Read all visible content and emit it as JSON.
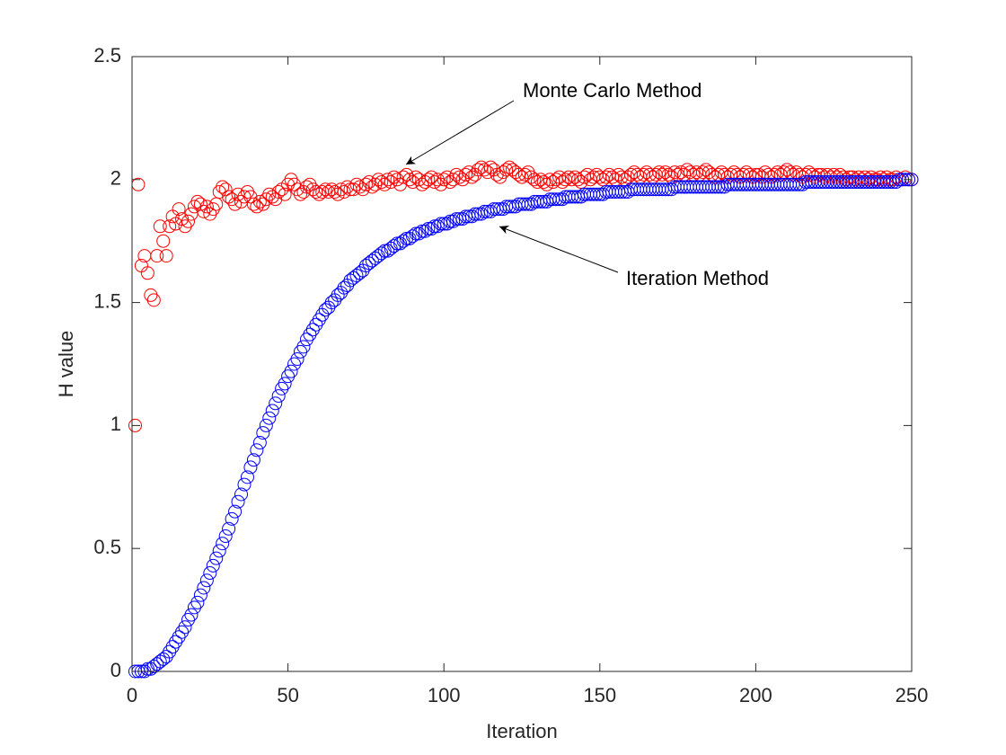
{
  "chart_data": {
    "type": "scatter",
    "xlabel": "Iteration",
    "ylabel": "H value",
    "xlim": [
      0,
      250
    ],
    "ylim": [
      0,
      2.5
    ],
    "xticks": [
      0,
      50,
      100,
      150,
      200,
      250
    ],
    "yticks": [
      0,
      0.5,
      1,
      1.5,
      2,
      2.5
    ],
    "annotations": [
      {
        "text": "Monte Carlo Method"
      },
      {
        "text": "Iteration Method"
      }
    ],
    "x": [
      1,
      2,
      3,
      4,
      5,
      6,
      7,
      8,
      9,
      10,
      11,
      12,
      13,
      14,
      15,
      16,
      17,
      18,
      19,
      20,
      21,
      22,
      23,
      24,
      25,
      26,
      27,
      28,
      29,
      30,
      31,
      32,
      33,
      34,
      35,
      36,
      37,
      38,
      39,
      40,
      41,
      42,
      43,
      44,
      45,
      46,
      47,
      48,
      49,
      50,
      51,
      52,
      53,
      54,
      55,
      56,
      57,
      58,
      59,
      60,
      61,
      62,
      63,
      64,
      65,
      66,
      67,
      68,
      69,
      70,
      71,
      72,
      73,
      74,
      75,
      76,
      77,
      78,
      79,
      80,
      81,
      82,
      83,
      84,
      85,
      86,
      87,
      88,
      89,
      90,
      91,
      92,
      93,
      94,
      95,
      96,
      97,
      98,
      99,
      100,
      101,
      102,
      103,
      104,
      105,
      106,
      107,
      108,
      109,
      110,
      111,
      112,
      113,
      114,
      115,
      116,
      117,
      118,
      119,
      120,
      121,
      122,
      123,
      124,
      125,
      126,
      127,
      128,
      129,
      130,
      131,
      132,
      133,
      134,
      135,
      136,
      137,
      138,
      139,
      140,
      141,
      142,
      143,
      144,
      145,
      146,
      147,
      148,
      149,
      150,
      151,
      152,
      153,
      154,
      155,
      156,
      157,
      158,
      159,
      160,
      161,
      162,
      163,
      164,
      165,
      166,
      167,
      168,
      169,
      170,
      171,
      172,
      173,
      174,
      175,
      176,
      177,
      178,
      179,
      180,
      181,
      182,
      183,
      184,
      185,
      186,
      187,
      188,
      189,
      190,
      191,
      192,
      193,
      194,
      195,
      196,
      197,
      198,
      199,
      200,
      201,
      202,
      203,
      204,
      205,
      206,
      207,
      208,
      209,
      210,
      211,
      212,
      213,
      214,
      215,
      216,
      217,
      218,
      219,
      220,
      221,
      222,
      223,
      224,
      225,
      226,
      227,
      228,
      229,
      230,
      231,
      232,
      233,
      234,
      235,
      236,
      237,
      238,
      239,
      240,
      241,
      242,
      243,
      244,
      245,
      246,
      247,
      248,
      249,
      250
    ],
    "series": [
      {
        "color": "#ff0000",
        "values": [
          1.0,
          1.98,
          1.65,
          1.69,
          1.62,
          1.53,
          1.51,
          1.69,
          1.81,
          1.75,
          1.69,
          1.81,
          1.85,
          1.82,
          1.88,
          1.84,
          1.81,
          1.83,
          1.86,
          1.89,
          1.91,
          1.9,
          1.87,
          1.89,
          1.86,
          1.88,
          1.9,
          1.95,
          1.97,
          1.96,
          1.93,
          1.92,
          1.9,
          1.94,
          1.91,
          1.93,
          1.95,
          1.93,
          1.9,
          1.89,
          1.91,
          1.9,
          1.92,
          1.94,
          1.93,
          1.92,
          1.95,
          1.96,
          1.94,
          1.98,
          2.0,
          1.98,
          1.96,
          1.94,
          1.95,
          1.97,
          1.98,
          1.96,
          1.95,
          1.94,
          1.95,
          1.96,
          1.95,
          1.96,
          1.95,
          1.94,
          1.96,
          1.95,
          1.97,
          1.96,
          1.96,
          1.98,
          1.97,
          1.96,
          1.98,
          1.99,
          1.97,
          1.98,
          2.0,
          1.99,
          1.98,
          2.0,
          1.99,
          2.01,
          2.0,
          1.98,
          2.01,
          2.02,
          2.0,
          1.99,
          2.01,
          2.0,
          1.98,
          1.99,
          2.0,
          2.01,
          1.99,
          2.0,
          1.98,
          2.0,
          2.01,
          1.99,
          2.0,
          2.02,
          2.01,
          2.0,
          2.02,
          2.03,
          2.01,
          2.02,
          2.04,
          2.05,
          2.04,
          2.03,
          2.05,
          2.04,
          2.02,
          2.01,
          2.03,
          2.04,
          2.05,
          2.04,
          2.03,
          2.02,
          2.01,
          2.02,
          2.03,
          2.01,
          2.0,
          1.99,
          2.0,
          1.99,
          1.98,
          2.0,
          1.99,
          2.0,
          2.01,
          1.99,
          2.0,
          2.01,
          2.0,
          2.01,
          2.0,
          1.99,
          2.01,
          2.02,
          2.0,
          2.01,
          2.02,
          2.01,
          2.0,
          2.01,
          2.02,
          2.01,
          2.0,
          2.02,
          2.01,
          2.0,
          2.01,
          2.02,
          2.03,
          2.02,
          2.01,
          2.02,
          2.03,
          2.02,
          2.01,
          2.02,
          2.03,
          2.02,
          2.03,
          2.02,
          2.01,
          2.03,
          2.02,
          2.03,
          2.02,
          2.04,
          2.03,
          2.02,
          2.03,
          2.02,
          2.03,
          2.04,
          2.03,
          2.02,
          2.01,
          2.02,
          2.03,
          2.02,
          2.01,
          2.02,
          2.03,
          2.02,
          2.01,
          2.02,
          2.03,
          2.02,
          2.01,
          2.02,
          2.02,
          2.01,
          2.03,
          2.02,
          2.01,
          2.02,
          2.03,
          2.02,
          2.03,
          2.04,
          2.03,
          2.02,
          2.03,
          2.02,
          2.01,
          2.02,
          2.03,
          2.02,
          2.01,
          2.02,
          2.02,
          2.01,
          2.02,
          2.01,
          2.02,
          2.01,
          2.02,
          2.01,
          2.0,
          2.01,
          2.01,
          2.0,
          2.01,
          2.0,
          2.01,
          2.0,
          2.01,
          2.0,
          2.0,
          2.01,
          2.0,
          2.01,
          2.0,
          2.0,
          2.01,
          2.0,
          2.0,
          2.01,
          2.0,
          2.0
        ]
      },
      {
        "color": "#0000ff",
        "values": [
          0,
          0,
          0,
          0,
          0.01,
          0.01,
          0.02,
          0.03,
          0.04,
          0.05,
          0.06,
          0.08,
          0.1,
          0.12,
          0.14,
          0.16,
          0.18,
          0.21,
          0.23,
          0.26,
          0.28,
          0.31,
          0.34,
          0.37,
          0.4,
          0.43,
          0.46,
          0.49,
          0.52,
          0.55,
          0.58,
          0.62,
          0.65,
          0.69,
          0.72,
          0.76,
          0.79,
          0.83,
          0.86,
          0.9,
          0.93,
          0.97,
          1.0,
          1.03,
          1.06,
          1.09,
          1.12,
          1.15,
          1.17,
          1.2,
          1.22,
          1.25,
          1.27,
          1.3,
          1.32,
          1.35,
          1.37,
          1.39,
          1.41,
          1.43,
          1.45,
          1.47,
          1.48,
          1.5,
          1.51,
          1.53,
          1.54,
          1.56,
          1.57,
          1.59,
          1.6,
          1.61,
          1.62,
          1.63,
          1.65,
          1.66,
          1.67,
          1.68,
          1.69,
          1.7,
          1.71,
          1.71,
          1.72,
          1.73,
          1.74,
          1.74,
          1.75,
          1.76,
          1.76,
          1.77,
          1.78,
          1.78,
          1.79,
          1.79,
          1.8,
          1.8,
          1.81,
          1.81,
          1.82,
          1.82,
          1.82,
          1.83,
          1.83,
          1.84,
          1.84,
          1.84,
          1.85,
          1.85,
          1.85,
          1.86,
          1.86,
          1.86,
          1.87,
          1.87,
          1.87,
          1.88,
          1.88,
          1.88,
          1.88,
          1.89,
          1.89,
          1.89,
          1.89,
          1.9,
          1.9,
          1.9,
          1.9,
          1.9,
          1.91,
          1.91,
          1.91,
          1.91,
          1.91,
          1.92,
          1.92,
          1.92,
          1.92,
          1.92,
          1.93,
          1.93,
          1.93,
          1.93,
          1.93,
          1.93,
          1.94,
          1.94,
          1.94,
          1.94,
          1.94,
          1.94,
          1.94,
          1.95,
          1.95,
          1.95,
          1.95,
          1.95,
          1.95,
          1.95,
          1.95,
          1.96,
          1.96,
          1.96,
          1.96,
          1.96,
          1.96,
          1.96,
          1.96,
          1.96,
          1.96,
          1.96,
          1.96,
          1.96,
          1.96,
          1.97,
          1.97,
          1.97,
          1.97,
          1.97,
          1.97,
          1.97,
          1.97,
          1.97,
          1.97,
          1.97,
          1.97,
          1.97,
          1.97,
          1.97,
          1.97,
          1.97,
          1.98,
          1.98,
          1.98,
          1.98,
          1.98,
          1.98,
          1.98,
          1.98,
          1.98,
          1.98,
          1.98,
          1.98,
          1.98,
          1.98,
          1.98,
          1.98,
          1.98,
          1.98,
          1.98,
          1.98,
          1.98,
          1.98,
          1.98,
          1.98,
          1.98,
          1.99,
          1.99,
          1.99,
          1.99,
          1.99,
          1.99,
          1.99,
          1.99,
          1.99,
          1.99,
          1.99,
          1.99,
          1.99,
          1.99,
          1.99,
          1.99,
          1.99,
          1.99,
          1.99,
          1.99,
          1.99,
          1.99,
          1.99,
          1.99,
          1.99,
          1.99,
          1.99,
          1.99,
          1.99,
          1.99,
          2.0,
          2.0,
          2.0,
          2.0,
          2.0
        ]
      }
    ]
  }
}
